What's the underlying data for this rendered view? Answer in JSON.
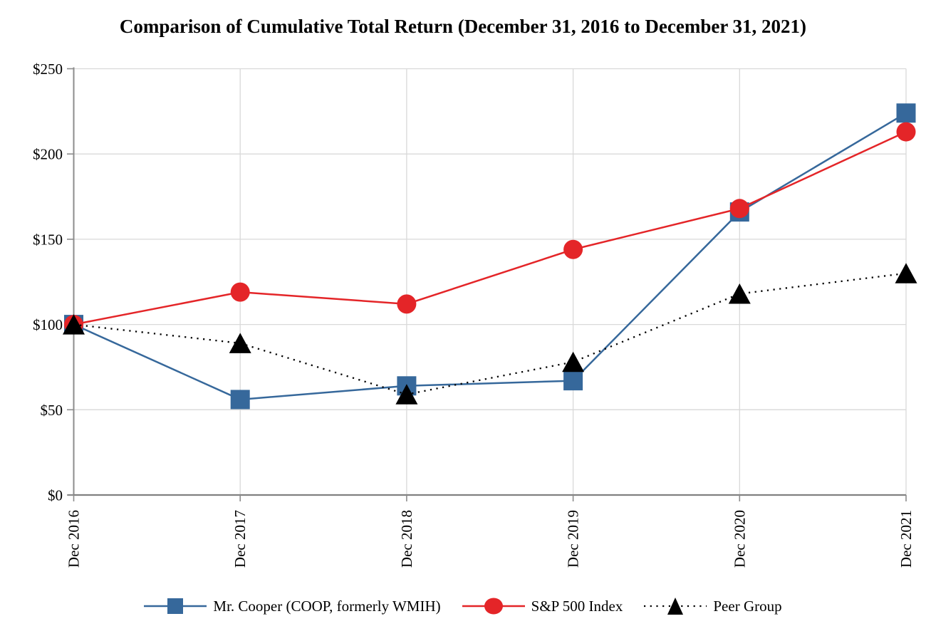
{
  "title": "Comparison of Cumulative Total Return (December 31, 2016 to December 31, 2021)",
  "chart_data": {
    "type": "line",
    "categories": [
      "Dec 2016",
      "Dec 2017",
      "Dec 2018",
      "Dec 2019",
      "Dec 2020",
      "Dec 2021"
    ],
    "series": [
      {
        "name": "Mr. Cooper (COOP, formerly WMIH)",
        "marker": "square",
        "line_style": "solid",
        "color": "#36689B",
        "values": [
          100,
          56,
          64,
          67,
          166,
          224
        ]
      },
      {
        "name": "S&P 500 Index",
        "marker": "circle",
        "line_style": "solid",
        "color": "#E42528",
        "values": [
          100,
          119,
          112,
          144,
          168,
          213
        ]
      },
      {
        "name": "Peer Group",
        "marker": "triangle",
        "line_style": "dotted",
        "color": "#000000",
        "values": [
          100,
          89,
          59,
          78,
          118,
          130
        ]
      }
    ],
    "y_ticks": [
      {
        "label": "$250",
        "value": 250
      },
      {
        "label": "$200",
        "value": 200
      },
      {
        "label": "$150",
        "value": 150
      },
      {
        "label": "$100",
        "value": 100
      },
      {
        "label": "$50",
        "value": 50
      },
      {
        "label": "$0",
        "value": 0
      }
    ],
    "ylim": [
      0,
      250
    ],
    "xlabel": "",
    "ylabel": "",
    "grid": true,
    "legend_position": "bottom"
  },
  "colors": {
    "gridline": "#D9D9D9",
    "axis": "#8C8C8C",
    "x_axis": "#808080",
    "text": "#000000",
    "background": "#FFFFFF"
  }
}
